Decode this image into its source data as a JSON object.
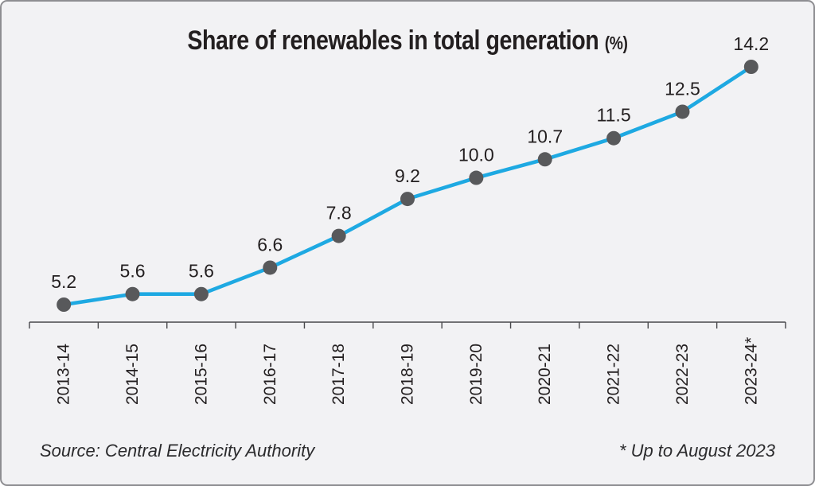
{
  "frame": {
    "background": "#f2f2f4",
    "border_color": "#8e8e92"
  },
  "title": {
    "text": "Share of renewables in total generation",
    "unit_suffix": "(%)"
  },
  "footer": {
    "source": "Source: Central Electricity Authority",
    "footnote": "* Up to August 2023"
  },
  "chart_data": {
    "type": "line",
    "title": "Share of renewables in total generation (%)",
    "categories": [
      "2013-14",
      "2014-15",
      "2015-16",
      "2016-17",
      "2017-18",
      "2018-19",
      "2019-20",
      "2020-21",
      "2021-22",
      "2022-23",
      "2023-24*"
    ],
    "values": [
      5.2,
      5.6,
      5.6,
      6.6,
      7.8,
      9.2,
      10.0,
      10.7,
      11.5,
      12.5,
      14.2
    ],
    "value_label_decimals": 1,
    "xlabel": "",
    "ylabel": "",
    "ylim": [
      4.5,
      15.5
    ],
    "grid": false,
    "legend": false,
    "x_tick_rotation": -90,
    "line_color": "#1ea9e2",
    "marker_color": "#58595b",
    "axis_color": "#48484b",
    "label_color": "#231f20"
  }
}
